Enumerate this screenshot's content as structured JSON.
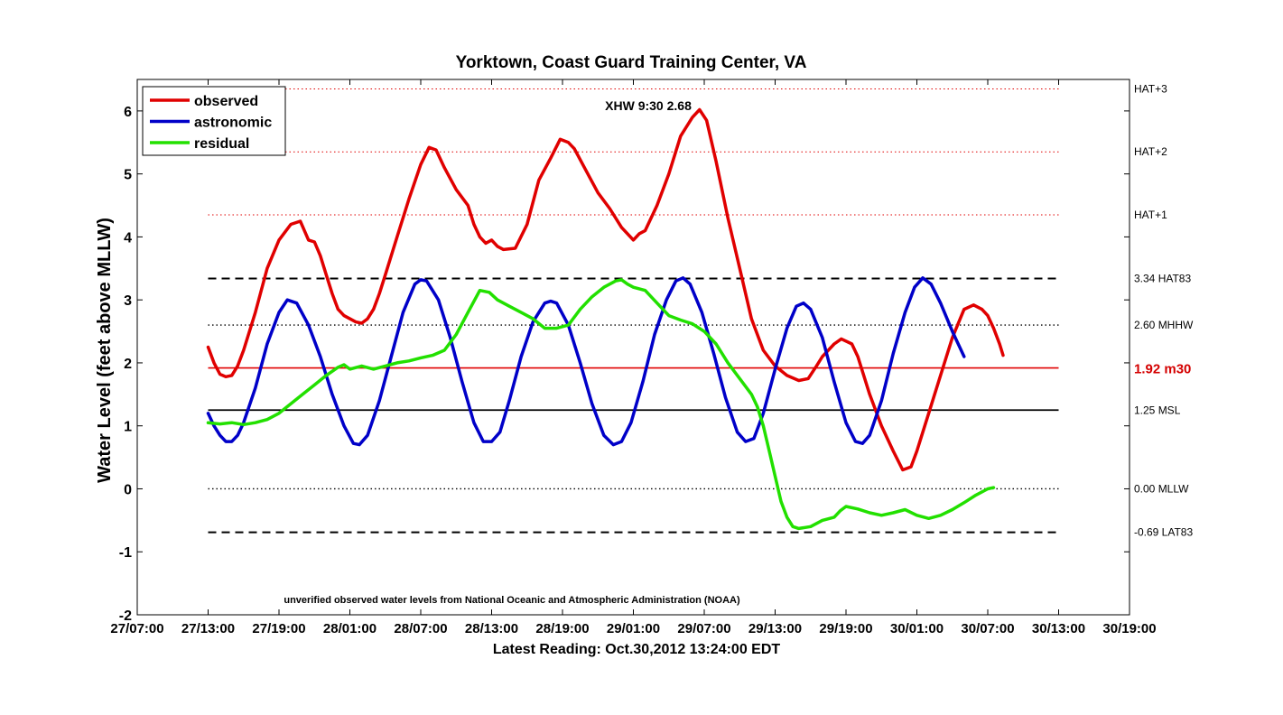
{
  "chart_data": {
    "type": "line",
    "title": "Yorktown, Coast Guard Training Center, VA",
    "ylabel": "Water Level (feet above MLLW)",
    "xlabel": "Latest Reading: Oct.30,2012 13:24:00 EDT",
    "annotation": "XHW 9:30 2.68",
    "source_note": "unverified observed water levels from National Oceanic and Atmospheric Administration (NOAA)",
    "x_unit": "hours since 27/07:00",
    "xlim": [
      0,
      84
    ],
    "ylim": [
      -2,
      6.5
    ],
    "x_ticks": [
      {
        "t": 0,
        "label": "27/07:00"
      },
      {
        "t": 6,
        "label": "27/13:00"
      },
      {
        "t": 12,
        "label": "27/19:00"
      },
      {
        "t": 18,
        "label": "28/01:00"
      },
      {
        "t": 24,
        "label": "28/07:00"
      },
      {
        "t": 30,
        "label": "28/13:00"
      },
      {
        "t": 36,
        "label": "28/19:00"
      },
      {
        "t": 42,
        "label": "29/01:00"
      },
      {
        "t": 48,
        "label": "29/07:00"
      },
      {
        "t": 54,
        "label": "29/13:00"
      },
      {
        "t": 60,
        "label": "29/19:00"
      },
      {
        "t": 66,
        "label": "30/01:00"
      },
      {
        "t": 72,
        "label": "30/07:00"
      },
      {
        "t": 78,
        "label": "30/13:00"
      },
      {
        "t": 84,
        "label": "30/19:00"
      }
    ],
    "y_ticks": [
      -2,
      -1,
      0,
      1,
      2,
      3,
      4,
      5,
      6
    ],
    "legend": {
      "placement": "top-left",
      "entries": [
        {
          "name": "observed",
          "color": "#e00000"
        },
        {
          "name": "astronomic",
          "color": "#0000c8"
        },
        {
          "name": "residual",
          "color": "#22e000"
        }
      ]
    },
    "reference_lines": [
      {
        "value": 6.35,
        "label": "HAT+3",
        "style": "dotted",
        "color": "#e00000",
        "bold": false,
        "label_color": "#000000"
      },
      {
        "value": 5.35,
        "label": "HAT+2",
        "style": "dotted",
        "color": "#e00000",
        "bold": false,
        "label_color": "#000000"
      },
      {
        "value": 4.35,
        "label": "HAT+1",
        "style": "dotted",
        "color": "#e00000",
        "bold": false,
        "label_color": "#000000"
      },
      {
        "value": 3.34,
        "label": "3.34 HAT83",
        "style": "dashed",
        "color": "#000000",
        "bold": false,
        "label_color": "#000000"
      },
      {
        "value": 2.6,
        "label": "2.60 MHHW",
        "style": "dotted",
        "color": "#000000",
        "bold": false,
        "label_color": "#000000"
      },
      {
        "value": 1.92,
        "label": "1.92 m30",
        "style": "solid",
        "color": "#e00000",
        "bold": true,
        "label_color": "#d40000"
      },
      {
        "value": 1.25,
        "label": "1.25 MSL",
        "style": "solid",
        "color": "#000000",
        "bold": false,
        "label_color": "#000000"
      },
      {
        "value": 0.0,
        "label": "0.00 MLLW",
        "style": "dotted",
        "color": "#000000",
        "bold": false,
        "label_color": "#000000"
      },
      {
        "value": -0.69,
        "label": "-0.69 LAT83",
        "style": "dashed",
        "color": "#000000",
        "bold": false,
        "label_color": "#000000"
      }
    ],
    "series": [
      {
        "name": "observed",
        "color": "#e00000",
        "points": [
          [
            6,
            2.25
          ],
          [
            6.5,
            2.0
          ],
          [
            7,
            1.82
          ],
          [
            7.5,
            1.78
          ],
          [
            8,
            1.8
          ],
          [
            8.5,
            1.95
          ],
          [
            9,
            2.2
          ],
          [
            10,
            2.8
          ],
          [
            11,
            3.5
          ],
          [
            12,
            3.95
          ],
          [
            13,
            4.2
          ],
          [
            13.8,
            4.25
          ],
          [
            14.5,
            3.95
          ],
          [
            15,
            3.92
          ],
          [
            15.5,
            3.7
          ],
          [
            16,
            3.4
          ],
          [
            16.5,
            3.1
          ],
          [
            17,
            2.85
          ],
          [
            17.5,
            2.75
          ],
          [
            18,
            2.7
          ],
          [
            18.5,
            2.65
          ],
          [
            19,
            2.63
          ],
          [
            19.5,
            2.7
          ],
          [
            20,
            2.85
          ],
          [
            20.5,
            3.1
          ],
          [
            21,
            3.4
          ],
          [
            22,
            4.0
          ],
          [
            23,
            4.6
          ],
          [
            24,
            5.15
          ],
          [
            24.7,
            5.42
          ],
          [
            25.3,
            5.38
          ],
          [
            26,
            5.1
          ],
          [
            27,
            4.75
          ],
          [
            28,
            4.5
          ],
          [
            28.5,
            4.2
          ],
          [
            29,
            4.0
          ],
          [
            29.5,
            3.9
          ],
          [
            30,
            3.95
          ],
          [
            30.5,
            3.85
          ],
          [
            31,
            3.8
          ],
          [
            32,
            3.82
          ],
          [
            33,
            4.2
          ],
          [
            34,
            4.9
          ],
          [
            35,
            5.25
          ],
          [
            35.8,
            5.55
          ],
          [
            36.5,
            5.5
          ],
          [
            37,
            5.4
          ],
          [
            38,
            5.05
          ],
          [
            39,
            4.7
          ],
          [
            40,
            4.45
          ],
          [
            41,
            4.15
          ],
          [
            42,
            3.95
          ],
          [
            42.5,
            4.05
          ],
          [
            43,
            4.1
          ],
          [
            44,
            4.5
          ],
          [
            45,
            5.0
          ],
          [
            46,
            5.6
          ],
          [
            47,
            5.9
          ],
          [
            47.6,
            6.02
          ],
          [
            48.2,
            5.85
          ],
          [
            49,
            5.2
          ],
          [
            50,
            4.3
          ],
          [
            51,
            3.5
          ],
          [
            52,
            2.7
          ],
          [
            53,
            2.2
          ],
          [
            54,
            1.95
          ],
          [
            55,
            1.8
          ],
          [
            56,
            1.72
          ],
          [
            56.8,
            1.75
          ],
          [
            57.5,
            1.95
          ],
          [
            58,
            2.1
          ],
          [
            59,
            2.3
          ],
          [
            59.6,
            2.38
          ],
          [
            60.5,
            2.3
          ],
          [
            61,
            2.1
          ],
          [
            62,
            1.5
          ],
          [
            63,
            1.0
          ],
          [
            64,
            0.6
          ],
          [
            64.8,
            0.3
          ],
          [
            65.5,
            0.35
          ],
          [
            66,
            0.6
          ],
          [
            67,
            1.2
          ],
          [
            68,
            1.8
          ],
          [
            69,
            2.4
          ],
          [
            70,
            2.85
          ],
          [
            70.8,
            2.92
          ],
          [
            71.5,
            2.85
          ],
          [
            72,
            2.75
          ],
          [
            72.5,
            2.55
          ],
          [
            73,
            2.3
          ],
          [
            73.3,
            2.12
          ]
        ]
      },
      {
        "name": "astronomic",
        "color": "#0000c8",
        "points": [
          [
            6,
            1.2
          ],
          [
            6.5,
            1.0
          ],
          [
            7,
            0.85
          ],
          [
            7.5,
            0.75
          ],
          [
            8,
            0.75
          ],
          [
            8.5,
            0.85
          ],
          [
            9,
            1.05
          ],
          [
            10,
            1.6
          ],
          [
            11,
            2.3
          ],
          [
            12,
            2.8
          ],
          [
            12.7,
            3.0
          ],
          [
            13.5,
            2.95
          ],
          [
            14.5,
            2.6
          ],
          [
            15.5,
            2.1
          ],
          [
            16.5,
            1.5
          ],
          [
            17.5,
            1.0
          ],
          [
            18.3,
            0.72
          ],
          [
            18.8,
            0.7
          ],
          [
            19.5,
            0.85
          ],
          [
            20.5,
            1.4
          ],
          [
            21.5,
            2.1
          ],
          [
            22.5,
            2.8
          ],
          [
            23.5,
            3.25
          ],
          [
            24,
            3.32
          ],
          [
            24.5,
            3.3
          ],
          [
            25.5,
            3.0
          ],
          [
            26.5,
            2.4
          ],
          [
            27.5,
            1.7
          ],
          [
            28.5,
            1.05
          ],
          [
            29.3,
            0.75
          ],
          [
            30,
            0.75
          ],
          [
            30.7,
            0.9
          ],
          [
            31.5,
            1.4
          ],
          [
            32.5,
            2.1
          ],
          [
            33.5,
            2.65
          ],
          [
            34.5,
            2.95
          ],
          [
            35,
            2.98
          ],
          [
            35.5,
            2.95
          ],
          [
            36.5,
            2.6
          ],
          [
            37.5,
            2.0
          ],
          [
            38.5,
            1.35
          ],
          [
            39.5,
            0.85
          ],
          [
            40.3,
            0.7
          ],
          [
            41,
            0.75
          ],
          [
            41.8,
            1.05
          ],
          [
            42.8,
            1.7
          ],
          [
            43.8,
            2.45
          ],
          [
            44.8,
            3.0
          ],
          [
            45.6,
            3.3
          ],
          [
            46.2,
            3.35
          ],
          [
            46.8,
            3.25
          ],
          [
            47.8,
            2.8
          ],
          [
            48.8,
            2.15
          ],
          [
            49.8,
            1.45
          ],
          [
            50.8,
            0.9
          ],
          [
            51.5,
            0.75
          ],
          [
            52.2,
            0.8
          ],
          [
            53,
            1.2
          ],
          [
            54,
            1.9
          ],
          [
            55,
            2.55
          ],
          [
            55.8,
            2.9
          ],
          [
            56.4,
            2.95
          ],
          [
            57,
            2.85
          ],
          [
            58,
            2.4
          ],
          [
            59,
            1.7
          ],
          [
            60,
            1.05
          ],
          [
            60.8,
            0.75
          ],
          [
            61.4,
            0.72
          ],
          [
            62,
            0.85
          ],
          [
            63,
            1.4
          ],
          [
            64,
            2.15
          ],
          [
            65,
            2.8
          ],
          [
            65.8,
            3.2
          ],
          [
            66.5,
            3.35
          ],
          [
            67.2,
            3.25
          ],
          [
            68,
            2.95
          ],
          [
            69,
            2.5
          ],
          [
            70,
            2.1
          ]
        ]
      },
      {
        "name": "residual",
        "color": "#22e000",
        "points": [
          [
            6,
            1.05
          ],
          [
            7,
            1.03
          ],
          [
            8,
            1.05
          ],
          [
            9,
            1.02
          ],
          [
            10,
            1.05
          ],
          [
            11,
            1.1
          ],
          [
            12,
            1.2
          ],
          [
            13,
            1.35
          ],
          [
            14,
            1.5
          ],
          [
            15,
            1.65
          ],
          [
            16,
            1.8
          ],
          [
            17,
            1.93
          ],
          [
            17.5,
            1.97
          ],
          [
            18,
            1.9
          ],
          [
            19,
            1.95
          ],
          [
            20,
            1.9
          ],
          [
            21,
            1.95
          ],
          [
            22,
            2.0
          ],
          [
            23,
            2.03
          ],
          [
            24,
            2.08
          ],
          [
            25,
            2.12
          ],
          [
            26,
            2.2
          ],
          [
            27,
            2.45
          ],
          [
            28,
            2.8
          ],
          [
            29,
            3.15
          ],
          [
            29.8,
            3.12
          ],
          [
            30.5,
            3.0
          ],
          [
            31.5,
            2.9
          ],
          [
            32.5,
            2.8
          ],
          [
            33.5,
            2.7
          ],
          [
            34.5,
            2.55
          ],
          [
            35.5,
            2.55
          ],
          [
            36.5,
            2.6
          ],
          [
            37.5,
            2.85
          ],
          [
            38.5,
            3.05
          ],
          [
            39.5,
            3.2
          ],
          [
            40.5,
            3.3
          ],
          [
            41,
            3.32
          ],
          [
            41.5,
            3.25
          ],
          [
            42,
            3.2
          ],
          [
            43,
            3.15
          ],
          [
            44,
            2.95
          ],
          [
            45,
            2.75
          ],
          [
            46,
            2.68
          ],
          [
            47,
            2.62
          ],
          [
            48,
            2.5
          ],
          [
            49,
            2.3
          ],
          [
            50,
            2.0
          ],
          [
            51,
            1.75
          ],
          [
            52,
            1.5
          ],
          [
            52.5,
            1.3
          ],
          [
            53,
            1.0
          ],
          [
            53.5,
            0.6
          ],
          [
            54,
            0.2
          ],
          [
            54.5,
            -0.2
          ],
          [
            55,
            -0.45
          ],
          [
            55.5,
            -0.6
          ],
          [
            56,
            -0.63
          ],
          [
            57,
            -0.6
          ],
          [
            58,
            -0.5
          ],
          [
            59,
            -0.45
          ],
          [
            59.5,
            -0.35
          ],
          [
            60,
            -0.28
          ],
          [
            61,
            -0.32
          ],
          [
            62,
            -0.38
          ],
          [
            63,
            -0.42
          ],
          [
            64,
            -0.38
          ],
          [
            65,
            -0.33
          ],
          [
            66,
            -0.42
          ],
          [
            67,
            -0.47
          ],
          [
            68,
            -0.42
          ],
          [
            69,
            -0.33
          ],
          [
            70,
            -0.22
          ],
          [
            71,
            -0.1
          ],
          [
            72,
            0.0
          ],
          [
            72.5,
            0.02
          ]
        ]
      }
    ]
  }
}
